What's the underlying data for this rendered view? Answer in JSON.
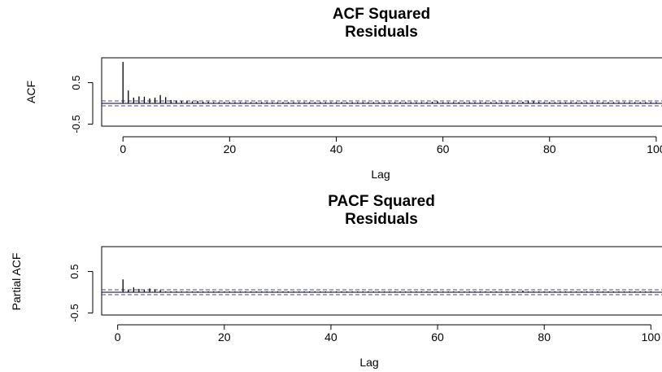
{
  "colors": {
    "bars": "#000000",
    "confidence_band": "#3b3bd6",
    "background": "#ffffff"
  },
  "chart_data": [
    {
      "type": "bar",
      "title_line1": "ACF Squared",
      "title_line2": "Residuals",
      "xlabel": "Lag",
      "ylabel": "ACF",
      "xlim": [
        -4,
        102
      ],
      "ylim": [
        -0.55,
        1.1
      ],
      "xticks": [
        0,
        20,
        40,
        60,
        80,
        100
      ],
      "xtick_labels": [
        "0",
        "20",
        "40",
        "60",
        "80",
        "100"
      ],
      "yticks": [
        -0.5,
        0.5
      ],
      "ytick_labels": [
        "-0.5",
        "0.5"
      ],
      "confidence_band": [
        -0.06,
        0.06
      ],
      "lags_start": 0,
      "values": [
        1.0,
        0.31,
        0.14,
        0.17,
        0.16,
        0.12,
        0.14,
        0.2,
        0.15,
        0.08,
        0.07,
        0.06,
        0.05,
        0.05,
        0.06,
        0.04,
        0.04,
        0.03,
        0.03,
        0.03,
        0.03,
        0.03,
        0.03,
        0.03,
        0.03,
        0.03,
        0.03,
        0.03,
        0.03,
        0.03,
        0.03,
        0.03,
        0.03,
        0.03,
        0.03,
        0.03,
        0.03,
        0.03,
        0.03,
        0.03,
        0.03,
        0.03,
        0.03,
        0.03,
        0.03,
        0.03,
        0.03,
        0.03,
        0.03,
        0.03,
        0.03,
        0.03,
        0.03,
        0.03,
        0.03,
        0.03,
        0.03,
        0.03,
        0.04,
        0.05,
        0.03,
        0.03,
        0.03,
        0.03,
        0.03,
        0.03,
        0.03,
        0.03,
        0.03,
        0.03,
        0.03,
        0.03,
        0.03,
        0.03,
        0.03,
        0.04,
        0.07,
        0.05,
        0.04,
        0.03,
        0.03,
        0.03,
        0.03,
        0.03,
        0.03,
        0.03,
        0.03,
        0.03,
        0.03,
        0.03,
        0.03,
        0.03,
        0.03,
        0.03,
        0.03,
        0.03,
        0.03,
        0.03,
        0.03,
        0.03,
        0.03
      ]
    },
    {
      "type": "bar",
      "title_line1": "PACF Squared",
      "title_line2": "Residuals",
      "xlabel": "Lag",
      "ylabel": "Partial ACF",
      "xlim": [
        -3,
        103
      ],
      "ylim": [
        -0.55,
        1.1
      ],
      "xticks": [
        0,
        20,
        40,
        60,
        80,
        100
      ],
      "xtick_labels": [
        "0",
        "20",
        "40",
        "60",
        "80",
        "100"
      ],
      "yticks": [
        -0.5,
        0.5
      ],
      "ytick_labels": [
        "-0.5",
        "0.5"
      ],
      "confidence_band": [
        -0.06,
        0.06
      ],
      "lags_start": 1,
      "values": [
        0.31,
        0.05,
        0.12,
        0.08,
        0.06,
        0.09,
        0.07,
        0.05,
        0.02,
        0.02,
        0.02,
        0.02,
        0.02,
        0.02,
        0.02,
        0.02,
        0.02,
        0.02,
        0.02,
        0.02,
        0.02,
        0.02,
        0.02,
        0.02,
        0.02,
        0.02,
        0.02,
        0.02,
        0.02,
        0.02,
        0.02,
        0.02,
        0.02,
        0.02,
        0.02,
        0.02,
        0.02,
        0.02,
        0.02,
        0.02,
        0.02,
        0.02,
        0.02,
        0.02,
        0.02,
        0.02,
        0.02,
        0.02,
        0.02,
        0.02,
        0.02,
        0.02,
        0.02,
        0.02,
        0.02,
        0.02,
        0.02,
        0.02,
        0.02,
        0.02,
        0.02,
        0.02,
        0.02,
        0.02,
        0.02,
        0.02,
        0.02,
        0.02,
        0.02,
        0.02,
        0.02,
        0.02,
        0.02,
        0.02,
        0.02,
        0.04,
        0.02,
        0.02,
        0.02,
        0.02,
        0.02,
        0.02,
        0.02,
        0.02,
        0.02,
        0.02,
        0.02,
        0.02,
        0.02,
        0.02,
        0.02,
        0.02,
        0.02,
        0.02,
        0.02,
        0.02,
        0.02,
        0.02,
        0.02,
        0.02
      ]
    }
  ]
}
